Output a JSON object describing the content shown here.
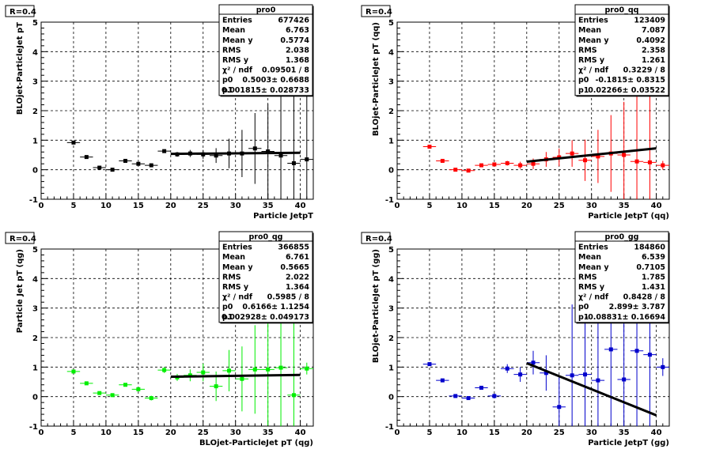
{
  "chart_data": [
    {
      "type": "scatter",
      "tag": "R=0.4",
      "title": "pro0",
      "xlabel": "Particle JetpT",
      "ylabel": "BLOjet-ParticleJet pT",
      "xlim": [
        0,
        42
      ],
      "ylim": [
        -1,
        5
      ],
      "xticks": [
        "0",
        "5",
        "10",
        "15",
        "20",
        "25",
        "30",
        "35",
        "40"
      ],
      "yticks": [
        "-1",
        "0",
        "1",
        "2",
        "3",
        "4",
        "5"
      ],
      "grid": true,
      "legend_position": "top-right",
      "stats": [
        [
          "Entries",
          "677426"
        ],
        [
          "Mean",
          "6.763"
        ],
        [
          "Mean y",
          "0.5774"
        ],
        [
          "RMS",
          "2.038"
        ],
        [
          "RMS y",
          "1.368"
        ],
        [
          "χ² / ndf",
          "0.09501 / 8"
        ],
        [
          "p0",
          "0.5003± 0.6688"
        ],
        [
          "p1",
          "0.001815± 0.028733"
        ]
      ],
      "color": "#000000",
      "points": [
        {
          "x": 5,
          "y": 0.92,
          "err": 0.03
        },
        {
          "x": 7,
          "y": 0.43,
          "err": 0.03
        },
        {
          "x": 9,
          "y": 0.07,
          "err": 0.03
        },
        {
          "x": 11,
          "y": 0.0,
          "err": 0.03
        },
        {
          "x": 13,
          "y": 0.3,
          "err": 0.03
        },
        {
          "x": 15,
          "y": 0.2,
          "err": 0.03
        },
        {
          "x": 17,
          "y": 0.15,
          "err": 0.04
        },
        {
          "x": 19,
          "y": 0.63,
          "err": 0.06
        },
        {
          "x": 21,
          "y": 0.52,
          "err": 0.08
        },
        {
          "x": 23,
          "y": 0.55,
          "err": 0.12
        },
        {
          "x": 25,
          "y": 0.52,
          "err": 0.15
        },
        {
          "x": 27,
          "y": 0.48,
          "err": 0.25
        },
        {
          "x": 29,
          "y": 0.55,
          "err": 0.5
        },
        {
          "x": 31,
          "y": 0.55,
          "err": 0.8
        },
        {
          "x": 33,
          "y": 0.72,
          "err": 1.2
        },
        {
          "x": 35,
          "y": 0.62,
          "err": 1.6
        },
        {
          "x": 37,
          "y": 0.48,
          "err": 2.0
        },
        {
          "x": 39,
          "y": 0.22,
          "err": 2.4
        },
        {
          "x": 41,
          "y": 0.35,
          "err": 2.8
        }
      ],
      "fit": {
        "p0": 0.5003,
        "p1": 0.001815,
        "range": [
          20,
          40
        ]
      }
    },
    {
      "type": "scatter",
      "tag": "R=0.4",
      "title": "pro0_qq",
      "xlabel": "Particle JetpT (qq)",
      "ylabel": "BLOjet-ParticleJet pT (qq)",
      "xlim": [
        0,
        42
      ],
      "ylim": [
        -1,
        5
      ],
      "xticks": [
        "0",
        "5",
        "10",
        "15",
        "20",
        "25",
        "30",
        "35",
        "40"
      ],
      "yticks": [
        "-1",
        "0",
        "1",
        "2",
        "3",
        "4",
        "5"
      ],
      "grid": true,
      "legend_position": "top-right",
      "stats": [
        [
          "Entries",
          "123409"
        ],
        [
          "Mean",
          "7.087"
        ],
        [
          "Mean y",
          "0.4092"
        ],
        [
          "RMS",
          "2.358"
        ],
        [
          "RMS y",
          "1.261"
        ],
        [
          "χ² / ndf",
          "0.3229 / 8"
        ],
        [
          "p0",
          "-0.1815± 0.8315"
        ],
        [
          "p1",
          "0.02266± 0.03522"
        ]
      ],
      "color": "#ff0000",
      "points": [
        {
          "x": 5,
          "y": 0.78,
          "err": 0.06
        },
        {
          "x": 7,
          "y": 0.3,
          "err": 0.05
        },
        {
          "x": 9,
          "y": 0.0,
          "err": 0.05
        },
        {
          "x": 11,
          "y": -0.03,
          "err": 0.05
        },
        {
          "x": 13,
          "y": 0.15,
          "err": 0.05
        },
        {
          "x": 15,
          "y": 0.18,
          "err": 0.06
        },
        {
          "x": 17,
          "y": 0.22,
          "err": 0.08
        },
        {
          "x": 19,
          "y": 0.15,
          "err": 0.12
        },
        {
          "x": 21,
          "y": 0.2,
          "err": 0.18
        },
        {
          "x": 23,
          "y": 0.35,
          "err": 0.25
        },
        {
          "x": 25,
          "y": 0.42,
          "err": 0.3
        },
        {
          "x": 27,
          "y": 0.55,
          "err": 0.45
        },
        {
          "x": 29,
          "y": 0.32,
          "err": 0.7
        },
        {
          "x": 31,
          "y": 0.45,
          "err": 0.9
        },
        {
          "x": 33,
          "y": 0.55,
          "err": 1.3
        },
        {
          "x": 35,
          "y": 0.5,
          "err": 1.8
        },
        {
          "x": 37,
          "y": 0.28,
          "err": 2.2
        },
        {
          "x": 39,
          "y": 0.25,
          "err": 2.5
        },
        {
          "x": 41,
          "y": 0.15,
          "err": 0.15
        }
      ],
      "fit": {
        "p0": -0.1815,
        "p1": 0.02266,
        "range": [
          20,
          40
        ]
      }
    },
    {
      "type": "scatter",
      "tag": "R=0.4",
      "title": "pro0_qg",
      "xlabel": "BLOjet-ParticleJet pT (qg)",
      "ylabel": "Particle Jet pT (qg)",
      "xlim": [
        0,
        42
      ],
      "ylim": [
        -1,
        5
      ],
      "xticks": [
        "0",
        "5",
        "10",
        "15",
        "20",
        "25",
        "30",
        "35",
        "40"
      ],
      "yticks": [
        "-1",
        "0",
        "1",
        "2",
        "3",
        "4",
        "5"
      ],
      "grid": true,
      "legend_position": "top-right",
      "stats": [
        [
          "Entries",
          "366855"
        ],
        [
          "Mean",
          "6.761"
        ],
        [
          "Mean y",
          "0.5665"
        ],
        [
          "RMS",
          "2.022"
        ],
        [
          "RMS y",
          "1.364"
        ],
        [
          "χ² / ndf",
          "0.5985 / 8"
        ],
        [
          "p0",
          "0.6166± 1.1254"
        ],
        [
          "p1",
          "0.002928± 0.049173"
        ]
      ],
      "color": "#00ee00",
      "points": [
        {
          "x": 5,
          "y": 0.85,
          "err": 0.04
        },
        {
          "x": 7,
          "y": 0.45,
          "err": 0.04
        },
        {
          "x": 9,
          "y": 0.12,
          "err": 0.04
        },
        {
          "x": 11,
          "y": 0.05,
          "err": 0.04
        },
        {
          "x": 13,
          "y": 0.4,
          "err": 0.05
        },
        {
          "x": 15,
          "y": 0.25,
          "err": 0.06
        },
        {
          "x": 17,
          "y": -0.05,
          "err": 0.08
        },
        {
          "x": 19,
          "y": 0.9,
          "err": 0.1
        },
        {
          "x": 21,
          "y": 0.65,
          "err": 0.12
        },
        {
          "x": 23,
          "y": 0.72,
          "err": 0.2
        },
        {
          "x": 25,
          "y": 0.82,
          "err": 0.3
        },
        {
          "x": 27,
          "y": 0.35,
          "err": 0.5
        },
        {
          "x": 29,
          "y": 0.88,
          "err": 0.7
        },
        {
          "x": 31,
          "y": 0.6,
          "err": 1.1
        },
        {
          "x": 33,
          "y": 0.92,
          "err": 1.5
        },
        {
          "x": 35,
          "y": 0.92,
          "err": 1.9
        },
        {
          "x": 37,
          "y": 0.98,
          "err": 2.3
        },
        {
          "x": 39,
          "y": 0.05,
          "err": 2.7
        },
        {
          "x": 41,
          "y": 0.95,
          "err": 0.2
        }
      ],
      "fit": {
        "p0": 0.6166,
        "p1": 0.002928,
        "range": [
          20,
          40
        ]
      }
    },
    {
      "type": "scatter",
      "tag": "R=0.4",
      "title": "pro0_gg",
      "xlabel": "Particle JetpT (gg)",
      "ylabel": "BLOjet-ParticleJet pT (gg)",
      "xlim": [
        0,
        42
      ],
      "ylim": [
        -1,
        5
      ],
      "xticks": [
        "0",
        "5",
        "10",
        "15",
        "20",
        "25",
        "30",
        "35",
        "40"
      ],
      "yticks": [
        "-1",
        "0",
        "1",
        "2",
        "3",
        "4",
        "5"
      ],
      "grid": true,
      "legend_position": "top-right",
      "stats": [
        [
          "Entries",
          "184860"
        ],
        [
          "Mean",
          "6.539"
        ],
        [
          "Mean y",
          "0.7105"
        ],
        [
          "RMS",
          "1.785"
        ],
        [
          "RMS y",
          "1.431"
        ],
        [
          "χ² / ndf",
          "0.8428 / 8"
        ],
        [
          "p0",
          "2.899± 3.787"
        ],
        [
          "p1",
          "-0.08831± 0.16694"
        ]
      ],
      "color": "#0000cc",
      "points": [
        {
          "x": 5,
          "y": 1.1,
          "err": 0.06
        },
        {
          "x": 7,
          "y": 0.55,
          "err": 0.05
        },
        {
          "x": 9,
          "y": 0.02,
          "err": 0.05
        },
        {
          "x": 11,
          "y": -0.05,
          "err": 0.05
        },
        {
          "x": 13,
          "y": 0.3,
          "err": 0.06
        },
        {
          "x": 15,
          "y": 0.02,
          "err": 0.08
        },
        {
          "x": 17,
          "y": 0.95,
          "err": 0.15
        },
        {
          "x": 19,
          "y": 0.75,
          "err": 0.25
        },
        {
          "x": 21,
          "y": 1.15,
          "err": 0.4
        },
        {
          "x": 23,
          "y": 0.8,
          "err": 0.6
        },
        {
          "x": 25,
          "y": -0.35,
          "err": 1.0
        },
        {
          "x": 27,
          "y": 0.72,
          "err": 2.4
        },
        {
          "x": 29,
          "y": 0.75,
          "err": 2.8
        },
        {
          "x": 31,
          "y": 0.55,
          "err": 3.0
        },
        {
          "x": 33,
          "y": 1.6,
          "err": 3.0
        },
        {
          "x": 35,
          "y": 0.58,
          "err": 3.0
        },
        {
          "x": 37,
          "y": 1.55,
          "err": 3.0
        },
        {
          "x": 39,
          "y": 1.42,
          "err": 3.0
        },
        {
          "x": 41,
          "y": 1.0,
          "err": 0.3
        }
      ],
      "fit": {
        "p0": 2.899,
        "p1": -0.08831,
        "range": [
          20,
          40
        ]
      }
    }
  ]
}
